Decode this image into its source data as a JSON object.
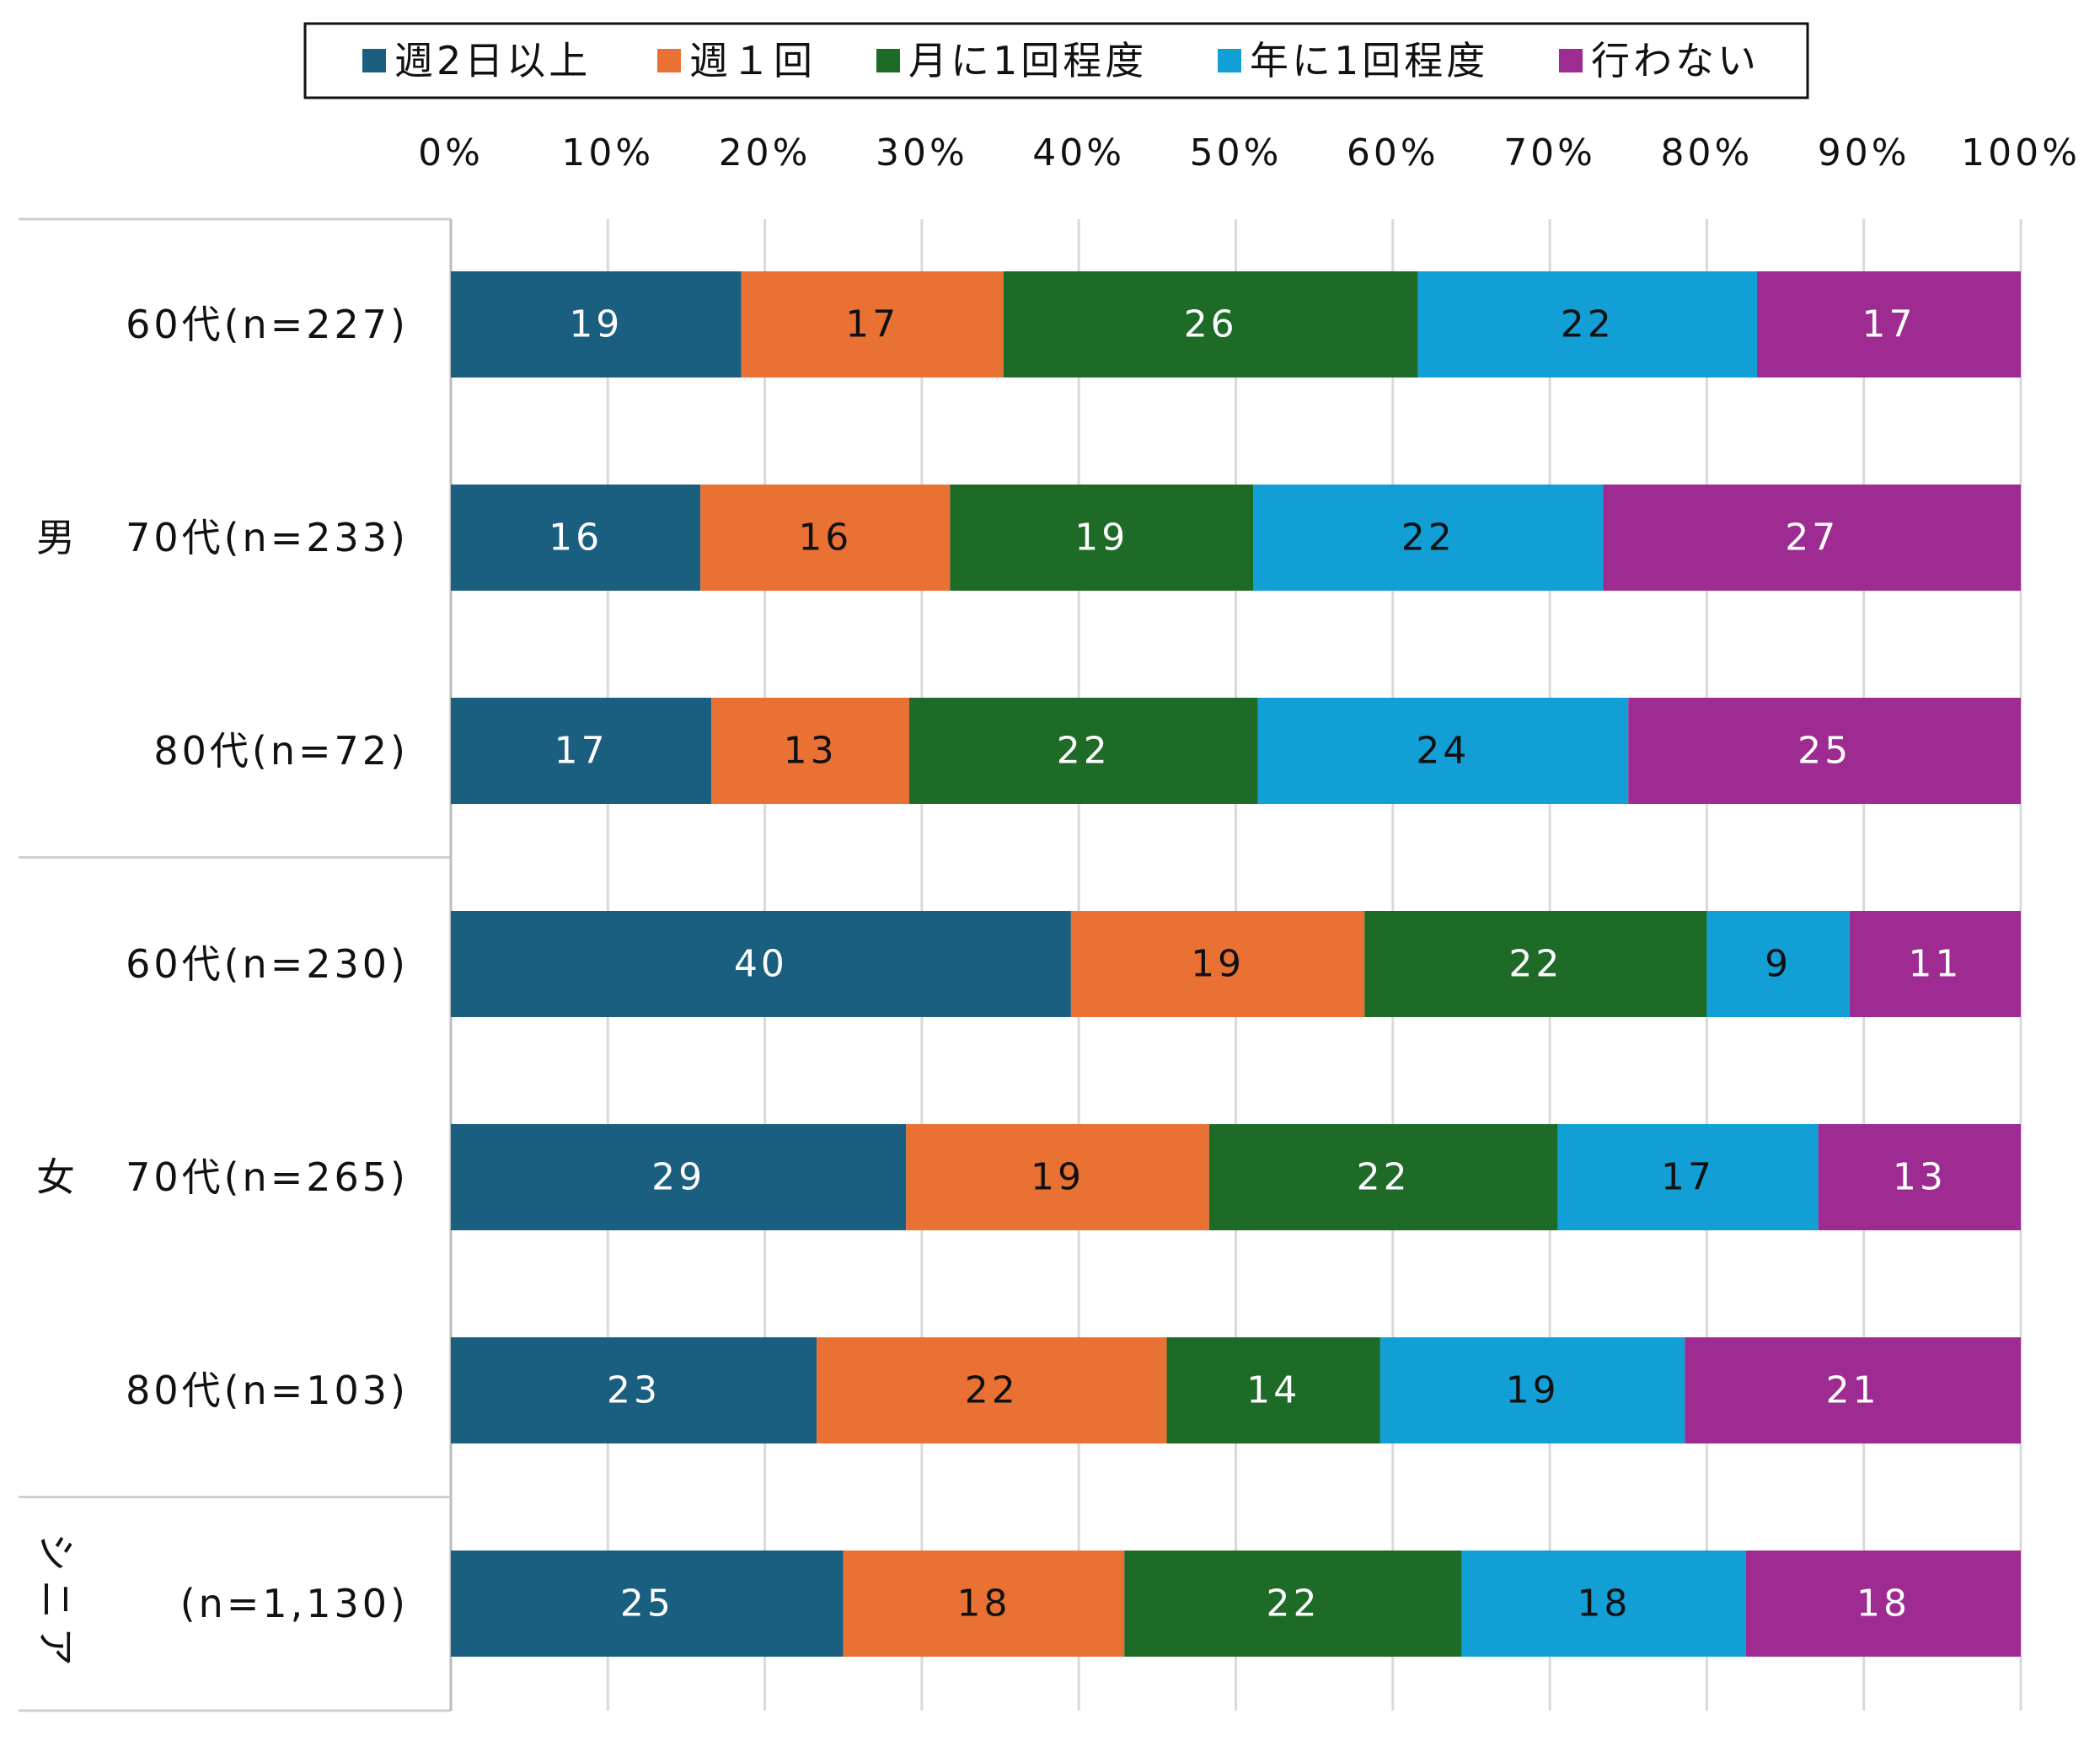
{
  "chart_data": {
    "type": "bar",
    "orientation": "horizontal",
    "stacked": true,
    "percent": true,
    "legend": {
      "position": "top",
      "entries": [
        "週2日以上",
        "週１回",
        "月に1回程度",
        "年に1回程度",
        "行わない"
      ]
    },
    "x_ticks": [
      "0%",
      "10%",
      "20%",
      "30%",
      "40%",
      "50%",
      "60%",
      "70%",
      "80%",
      "90%",
      "100%"
    ],
    "xlim": [
      0,
      100
    ],
    "grid": true,
    "groups": [
      {
        "label": "男",
        "categories": [
          0,
          1,
          2
        ]
      },
      {
        "label": "女",
        "categories": [
          3,
          4,
          5
        ]
      },
      {
        "label": "シニア",
        "categories": [
          6
        ]
      }
    ],
    "categories": [
      "60代(n=227)",
      "70代(n=233)",
      "80代(n=72)",
      "60代(n=230)",
      "70代(n=265)",
      "80代(n=103)",
      "(n=1,130)"
    ],
    "series": [
      {
        "name": "週2日以上",
        "color": "#1a5f80",
        "values": [
          18.5,
          15.9,
          16.6,
          39.5,
          29.0,
          23.3,
          25.0
        ]
      },
      {
        "name": "週１回",
        "color": "#ea7134",
        "values": [
          16.7,
          15.9,
          12.6,
          18.7,
          19.3,
          22.3,
          17.9
        ]
      },
      {
        "name": "月に1回程度",
        "color": "#1d6b27",
        "values": [
          26.4,
          19.3,
          22.2,
          21.8,
          22.2,
          13.6,
          21.5
        ]
      },
      {
        "name": "年に1回程度",
        "color": "#119fd6",
        "values": [
          21.6,
          22.3,
          23.6,
          9.1,
          16.6,
          19.4,
          18.1
        ]
      },
      {
        "name": "行わない",
        "color": "#9e2b91",
        "values": [
          16.8,
          26.6,
          25.0,
          10.9,
          12.9,
          21.4,
          17.5
        ]
      }
    ],
    "data_labels": [
      [
        "19",
        "16",
        "17",
        "40",
        "29",
        "23",
        "25"
      ],
      [
        "17",
        "16",
        "13",
        "19",
        "19",
        "22",
        "18"
      ],
      [
        "26",
        "19",
        "22",
        "22",
        "22",
        "14",
        "22"
      ],
      [
        "22",
        "22",
        "24",
        "9",
        "17",
        "19",
        "18"
      ],
      [
        "17",
        "27",
        "25",
        "11",
        "13",
        "21",
        "18"
      ]
    ],
    "label_colors": [
      "#ffffff",
      "#111111",
      "#ffffff",
      "#111111",
      "#ffffff"
    ]
  }
}
